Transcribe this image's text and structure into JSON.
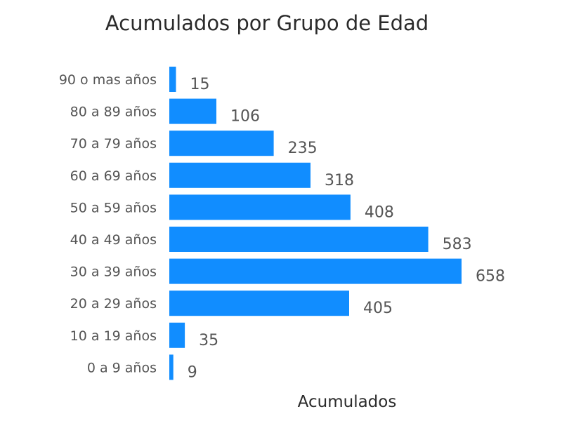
{
  "chart_data": {
    "type": "bar",
    "orientation": "horizontal",
    "title": "Acumulados por Grupo de Edad",
    "xlabel": "Acumulados",
    "ylabel": "",
    "categories": [
      "90 o mas años",
      "80 a 89 años",
      "70 a 79 años",
      "60 a 69 años",
      "50 a 59 años",
      "40 a 49 años",
      "30 a 39 años",
      "20 a 29 años",
      "10 a 19 años",
      "0 a 9 años"
    ],
    "values": [
      15,
      106,
      235,
      318,
      408,
      583,
      658,
      405,
      35,
      9
    ],
    "xlim": [
      0,
      658
    ],
    "grid": false,
    "legend": "none",
    "data_labels": true,
    "bar_color": "#118dff",
    "text_color": "#555555",
    "title_color": "#2b2b2b"
  }
}
